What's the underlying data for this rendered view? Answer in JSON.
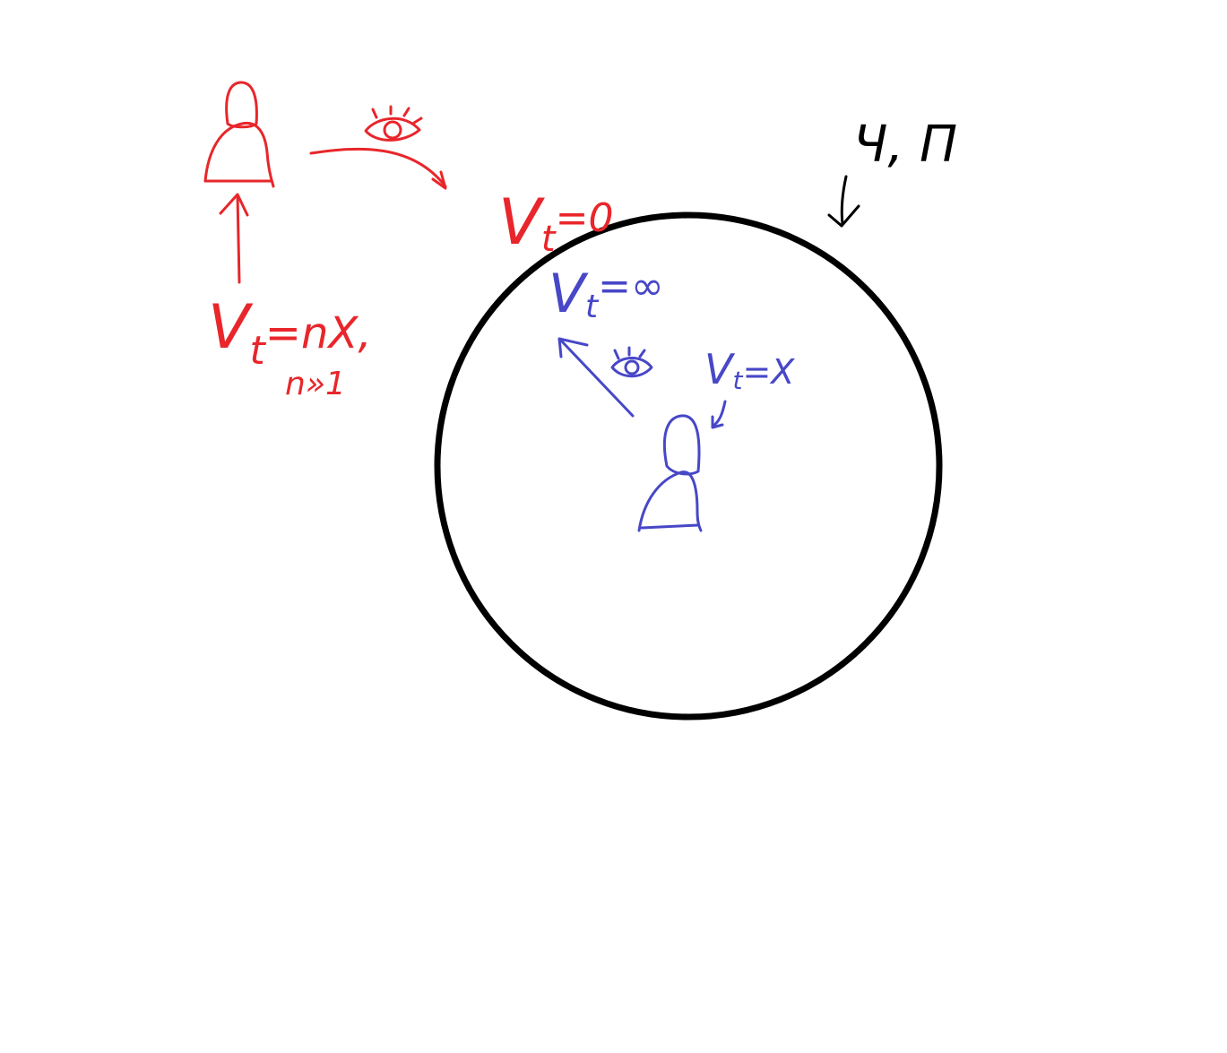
{
  "colors": {
    "outside": "#e8262b",
    "inside": "#4747c8",
    "boundary": "#000000",
    "background": "#ffffff"
  },
  "labels": {
    "outer_velocity": {
      "main": "V",
      "sub": "t",
      "rest": "=nX,"
    },
    "outer_condition": "n»1",
    "horizon_velocity": {
      "main": "V",
      "sub": "t",
      "rest": "=0"
    },
    "inner_observed": {
      "main": "V",
      "sub": "t",
      "rest": "=∞"
    },
    "inner_velocity": {
      "main": "V",
      "sub": "t",
      "rest": "=X"
    },
    "boundary_note": "Ч, П"
  },
  "icons": {
    "outer_eye": "eye-icon",
    "inner_eye": "eye-icon",
    "outer_person": "person-icon",
    "inner_person": "person-icon"
  }
}
